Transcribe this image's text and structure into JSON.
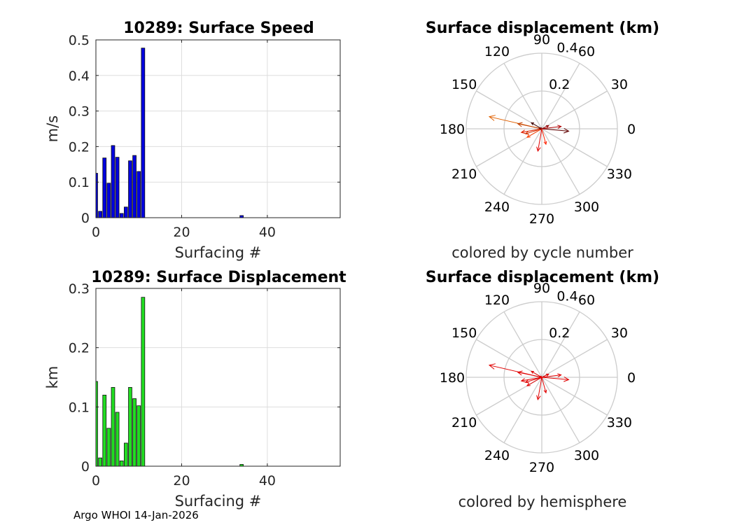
{
  "footer": "Argo WHOI 14-Jan-2026",
  "chart_data": [
    {
      "type": "bar",
      "title": "10289: Surface Speed",
      "xlabel": "Surfacing #",
      "ylabel": "m/s",
      "xlim": [
        0,
        57
      ],
      "ylim": [
        0,
        0.5
      ],
      "xticks": [
        0,
        20,
        40
      ],
      "yticks": [
        0,
        0.1,
        0.2,
        0.3,
        0.4,
        0.5
      ],
      "ytick_labels": [
        "0",
        "0.1",
        "0.2",
        "0.3",
        "0.4",
        "0.5"
      ],
      "grid": true,
      "color": "#0000e0",
      "x": [
        0,
        1,
        2,
        3,
        4,
        5,
        6,
        7,
        8,
        9,
        10,
        11,
        34
      ],
      "values": [
        0.125,
        0.018,
        0.168,
        0.097,
        0.203,
        0.17,
        0.012,
        0.03,
        0.16,
        0.175,
        0.13,
        0.477,
        0.006
      ]
    },
    {
      "type": "polar-compass",
      "title": "Surface displacement (km)",
      "subtitle": "colored by cycle number",
      "rmax": 0.4,
      "rticks": [
        0.2,
        0.4
      ],
      "angle_labels": [
        "0",
        "30",
        "60",
        "90",
        "120",
        "150",
        "180",
        "210",
        "240",
        "270",
        "300",
        "330"
      ],
      "vectors": [
        {
          "angle": 167,
          "r": 0.285,
          "color": "#e06000"
        },
        {
          "angle": 168,
          "r": 0.13,
          "color": "#c04000"
        },
        {
          "angle": 190,
          "r": 0.11,
          "color": "#e02000"
        },
        {
          "angle": 197,
          "r": 0.09,
          "color": "#d03000"
        },
        {
          "angle": 260,
          "r": 0.12,
          "color": "#e00000"
        },
        {
          "angle": 285,
          "r": 0.085,
          "color": "#ff2000"
        },
        {
          "angle": 355,
          "r": 0.143,
          "color": "#600000"
        },
        {
          "angle": 7,
          "r": 0.103,
          "color": "#b00000"
        },
        {
          "angle": 25,
          "r": 0.04,
          "color": "#900000"
        },
        {
          "angle": 150,
          "r": 0.064,
          "color": "#400000"
        },
        {
          "angle": 210,
          "r": 0.09,
          "color": "#ff4000"
        },
        {
          "angle": 170,
          "r": 0.015,
          "color": "#800000"
        }
      ]
    },
    {
      "type": "bar",
      "title": "10289: Surface Displacement",
      "xlabel": "Surfacing #",
      "ylabel": "km",
      "xlim": [
        0,
        57
      ],
      "ylim": [
        0,
        0.3
      ],
      "xticks": [
        0,
        20,
        40
      ],
      "yticks": [
        0,
        0.1,
        0.2,
        0.3
      ],
      "ytick_labels": [
        "0",
        "0.1",
        "0.2",
        "0.3"
      ],
      "grid": true,
      "color": "#22dd22",
      "x": [
        0,
        1,
        2,
        3,
        4,
        5,
        6,
        7,
        8,
        9,
        10,
        11,
        34
      ],
      "values": [
        0.143,
        0.014,
        0.12,
        0.064,
        0.133,
        0.091,
        0.009,
        0.039,
        0.133,
        0.114,
        0.102,
        0.285,
        0.003
      ]
    },
    {
      "type": "polar-compass",
      "title": "Surface displacement (km)",
      "subtitle": "colored by hemisphere",
      "rmax": 0.4,
      "rticks": [
        0.2,
        0.4
      ],
      "angle_labels": [
        "0",
        "30",
        "60",
        "90",
        "120",
        "150",
        "180",
        "210",
        "240",
        "270",
        "300",
        "330"
      ],
      "vectors": [
        {
          "angle": 167,
          "r": 0.285,
          "color": "#e00000"
        },
        {
          "angle": 168,
          "r": 0.13,
          "color": "#e00000"
        },
        {
          "angle": 190,
          "r": 0.11,
          "color": "#e00000"
        },
        {
          "angle": 197,
          "r": 0.09,
          "color": "#e00000"
        },
        {
          "angle": 260,
          "r": 0.12,
          "color": "#e00000"
        },
        {
          "angle": 285,
          "r": 0.085,
          "color": "#e00000"
        },
        {
          "angle": 355,
          "r": 0.143,
          "color": "#e00000"
        },
        {
          "angle": 7,
          "r": 0.103,
          "color": "#e00000"
        },
        {
          "angle": 25,
          "r": 0.04,
          "color": "#e00000"
        },
        {
          "angle": 150,
          "r": 0.064,
          "color": "#e00000"
        },
        {
          "angle": 210,
          "r": 0.09,
          "color": "#e00000"
        },
        {
          "angle": 170,
          "r": 0.015,
          "color": "#e00000"
        }
      ]
    }
  ]
}
